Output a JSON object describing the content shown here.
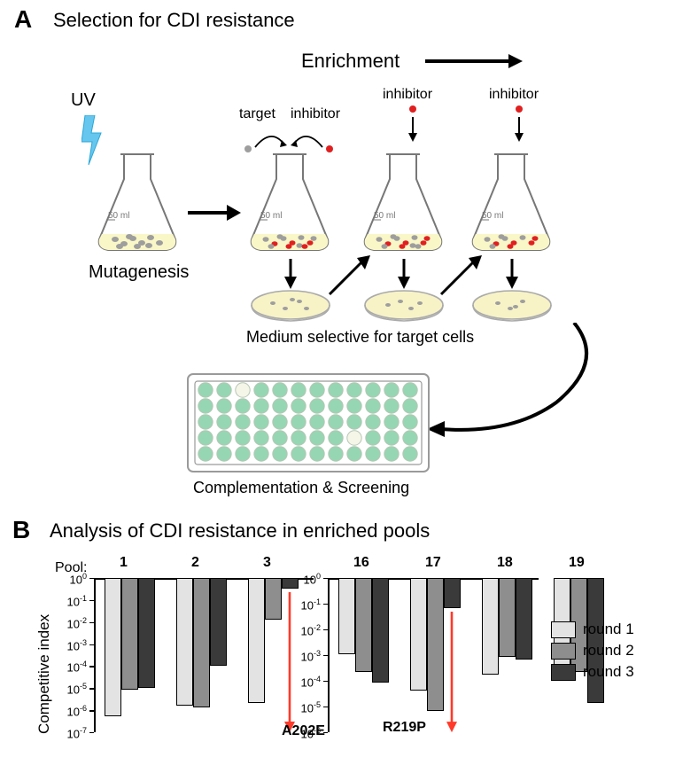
{
  "panelA": {
    "letter": "A",
    "title": "Selection for CDI resistance",
    "labels": {
      "uv": "UV",
      "mutagenesis": "Mutagenesis",
      "enrichment": "Enrichment",
      "target": "target",
      "inhibitor": "inhibitor",
      "medium": "Medium selective for target cells",
      "complementation": "Complementation & Screening"
    },
    "flask": {
      "volume": "50 ml"
    },
    "colors": {
      "uv_bolt": "#66c6ee",
      "target_cell": "#9e9e9e",
      "inhibitor_cell": "#e02020",
      "flask_liquid": "#f9f7c8",
      "flask_stroke": "#777777",
      "plate_fill": "#f7f3c7",
      "plate_stroke": "#aaaaaa",
      "well_filled": "#96d6b3",
      "well_empty": "#f5f5e8",
      "well_stroke": "#b4c7b4",
      "microplate_border": "#9a9a9a"
    }
  },
  "panelB": {
    "letter": "B",
    "title": "Analysis of CDI resistance in enriched pools",
    "axis": {
      "ytitle": "Competitive index",
      "ylim_exp": [
        -7,
        0
      ],
      "pool_label": "Pool:"
    },
    "legend": {
      "items": [
        "round 1",
        "round 2",
        "round 3"
      ],
      "colors": [
        "#e3e3e3",
        "#8e8e8e",
        "#3a3a3a"
      ]
    },
    "mutations": {
      "m1": "A202E",
      "m2": "R219P"
    },
    "chart1": {
      "pools": [
        "1",
        "2",
        "3"
      ],
      "values": [
        [
          -6.2,
          -5.0,
          -4.9
        ],
        [
          -5.7,
          -5.8,
          -3.9
        ],
        [
          -5.6,
          -1.8,
          -0.4
        ]
      ],
      "arrow_col_index": 2
    },
    "chart2": {
      "pools": [
        "16",
        "17",
        "18",
        "19"
      ],
      "values": [
        [
          -2.9,
          -3.6,
          -4.0
        ],
        [
          -4.3,
          -5.1,
          -1.1
        ],
        [
          -3.7,
          -3.0,
          -3.1
        ],
        [
          -3.9,
          -3.6,
          -4.8
        ]
      ],
      "arrow_col_index": 1
    },
    "colors": {
      "arrow": "#ff3a2a"
    }
  }
}
